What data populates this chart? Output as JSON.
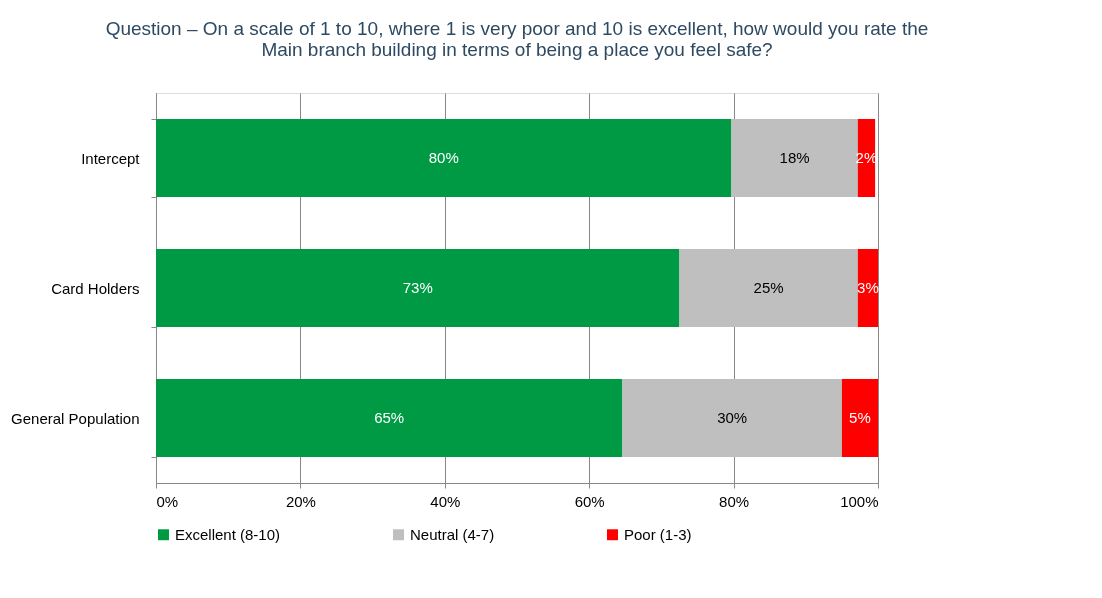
{
  "chart_data": {
    "type": "bar",
    "orientation": "horizontal",
    "stacked": true,
    "title": [
      "Question – On a scale of 1 to 10, where 1 is very poor and 10 is excellent, how would you rate the",
      "Main branch building in terms of being a place you feel safe?"
    ],
    "categories": [
      "Intercept",
      "Card Holders",
      "General Population"
    ],
    "series": [
      {
        "name": "Excellent (8-10)",
        "color": "#009a44",
        "values": [
          79.7,
          72.5,
          64.6
        ],
        "value_labels": [
          "80%",
          "73%",
          "65%"
        ]
      },
      {
        "name": "Neutral (4-7)",
        "color": "#bfbfbf",
        "values": [
          17.5,
          24.7,
          30.4
        ],
        "value_labels": [
          "18%",
          "25%",
          "30%"
        ]
      },
      {
        "name": "Poor (1-3)",
        "color": "#ff0000",
        "values": [
          2.4,
          2.8,
          5.0
        ],
        "value_labels": [
          "2%",
          "3%",
          "5%"
        ]
      }
    ],
    "xlim": [
      0,
      100
    ],
    "xticks": [
      {
        "value": 0,
        "label": "0%"
      },
      {
        "value": 20,
        "label": "20%"
      },
      {
        "value": 40,
        "label": "40%"
      },
      {
        "value": 60,
        "label": "60%"
      },
      {
        "value": 80,
        "label": "80%"
      },
      {
        "value": 100,
        "label": "100%"
      }
    ],
    "grid": "x",
    "legend": "bottom"
  }
}
